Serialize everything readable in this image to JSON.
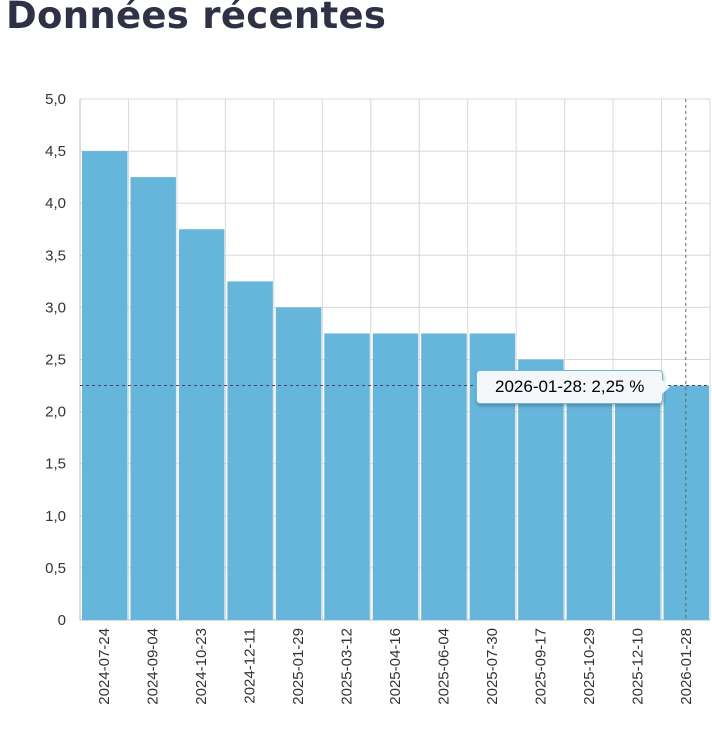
{
  "title": "Données récentes",
  "chart_data": {
    "type": "bar",
    "title": "Données récentes",
    "xlabel": "",
    "ylabel": "",
    "unit": "%",
    "ylim": [
      0,
      5
    ],
    "yticks": [
      "0",
      "0,5",
      "1,0",
      "1,5",
      "2,0",
      "2,5",
      "3,0",
      "3,5",
      "4,0",
      "4,5",
      "5,0"
    ],
    "grid": true,
    "categories": [
      "2024-07-24",
      "2024-09-04",
      "2024-10-23",
      "2024-12-11",
      "2025-01-29",
      "2025-03-12",
      "2025-04-16",
      "2025-06-04",
      "2025-07-30",
      "2025-09-17",
      "2025-10-29",
      "2025-12-10",
      "2026-01-28"
    ],
    "values": [
      4.5,
      4.25,
      3.75,
      3.25,
      3.0,
      2.75,
      2.75,
      2.75,
      2.75,
      2.5,
      2.25,
      2.25,
      2.25
    ],
    "color": "#66b5db",
    "highlighted_index": 12
  },
  "tooltip": {
    "text": "2026-01-28: 2,25 %"
  }
}
